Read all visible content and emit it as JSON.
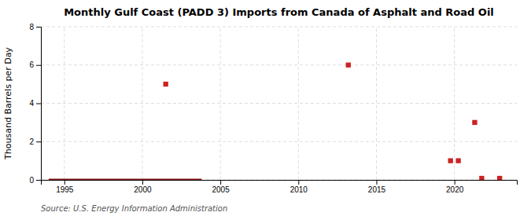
{
  "chart_data": {
    "type": "scatter",
    "title": "Monthly Gulf Coast (PADD 3) Imports from Canada of Asphalt and Road Oil",
    "y_label": "Thousand Barrels per Day",
    "annotations": [
      "Source: U.S. Energy Information Administration"
    ],
    "series": [
      {
        "type": "line",
        "color": "#8b1a1a",
        "line_style": "solid",
        "x": [
          1994.0,
          2003.8
        ],
        "values": [
          0,
          0
        ]
      },
      {
        "type": "scatter",
        "color": "#cc2222",
        "marker": "square",
        "x": [
          2001.5,
          2013.2,
          2019.75,
          2020.25,
          2021.3,
          2021.75,
          2022.9
        ],
        "values": [
          5.0,
          6.0,
          1.0,
          1.0,
          3.0,
          0.08,
          0.08
        ]
      }
    ],
    "xlim": [
      1993.5,
      2024
    ],
    "ylim": [
      0,
      8
    ],
    "xticks": [
      1995,
      2000,
      2005,
      2010,
      2015,
      2020
    ],
    "yticks": [
      0,
      2,
      4,
      6,
      8
    ],
    "grid": true
  }
}
